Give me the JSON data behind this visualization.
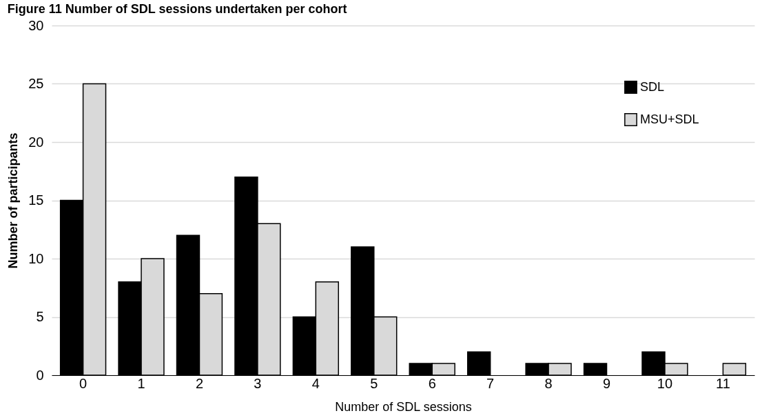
{
  "chart_data": {
    "type": "bar",
    "title": "Figure 11 Number of SDL sessions undertaken per cohort",
    "xlabel": "Number of SDL sessions",
    "ylabel": "Number of participants",
    "categories": [
      "0",
      "1",
      "2",
      "3",
      "4",
      "5",
      "6",
      "7",
      "8",
      "9",
      "10",
      "11"
    ],
    "series": [
      {
        "name": "SDL",
        "color": "#000000",
        "values": [
          15,
          8,
          12,
          17,
          5,
          11,
          1,
          2,
          1,
          1,
          2,
          0
        ]
      },
      {
        "name": "MSU+SDL",
        "color": "#d9d9d9",
        "values": [
          25,
          10,
          7,
          13,
          8,
          5,
          1,
          0,
          1,
          0,
          1,
          1
        ]
      }
    ],
    "ylim": [
      0,
      30
    ],
    "yticks": [
      0,
      5,
      10,
      15,
      20,
      25,
      30
    ],
    "grid": "y",
    "legend": "top right"
  }
}
